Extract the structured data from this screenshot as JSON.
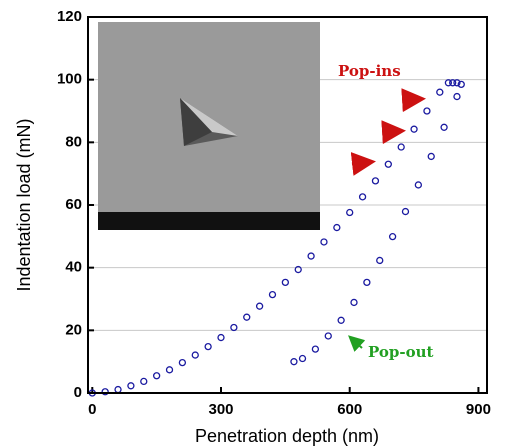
{
  "chart_data": {
    "type": "scatter",
    "x_label": "Penetration depth (nm)",
    "y_label": "Indentation load (mN)",
    "xlim": [
      -10,
      920
    ],
    "ylim": [
      0,
      120
    ],
    "xticks": [
      0,
      300,
      600,
      900
    ],
    "yticks": [
      0,
      20,
      40,
      60,
      80,
      100,
      120
    ],
    "grid": true,
    "series": [
      {
        "color": "#1a1aa0",
        "x": [
          0,
          30,
          60,
          90,
          120,
          150,
          180,
          210,
          240,
          270,
          300,
          330,
          360,
          390,
          420,
          450,
          480,
          510,
          540,
          570,
          600,
          630,
          660,
          690,
          720,
          750,
          780,
          810,
          830,
          840,
          850,
          860,
          850,
          820,
          790,
          760,
          730,
          700,
          670,
          640,
          610,
          580,
          550,
          520,
          490,
          470
        ],
        "values": [
          0,
          0.4,
          1.1,
          2.3,
          3.7,
          5.5,
          7.4,
          9.7,
          12.1,
          14.8,
          17.7,
          20.9,
          24.2,
          27.7,
          31.4,
          35.3,
          39.4,
          43.7,
          48.2,
          52.8,
          57.6,
          62.6,
          67.7,
          73,
          78.5,
          84.2,
          90,
          96,
          99,
          99,
          99,
          98.5,
          94.6,
          84.8,
          75.5,
          66.4,
          57.9,
          49.9,
          42.3,
          35.3,
          28.9,
          23.2,
          18.2,
          14,
          11,
          10
        ]
      }
    ],
    "annotations": [
      {
        "text": "Pop-ins",
        "color": "#cc1111"
      },
      {
        "text": "Pop-out",
        "color": "#22a022"
      }
    ]
  }
}
